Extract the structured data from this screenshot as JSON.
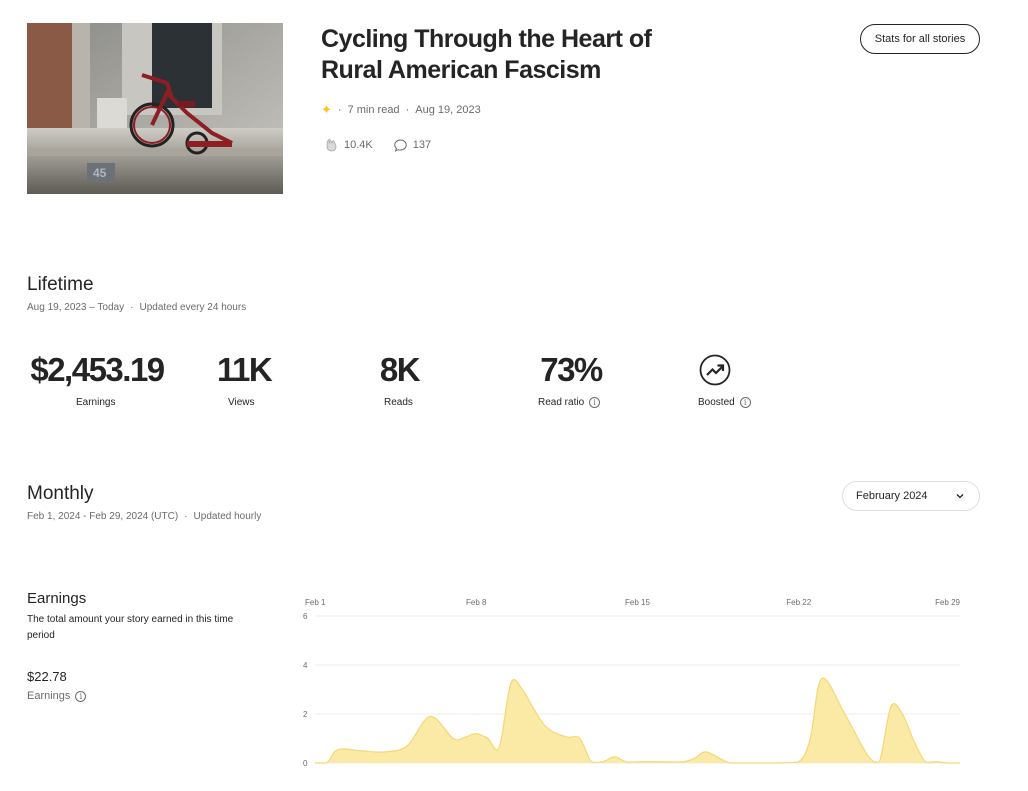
{
  "story": {
    "title": "Cycling Through the Heart of Rural American Fascism",
    "read_time": "7 min read",
    "date": "Aug 19, 2023",
    "claps": "10.4K",
    "responses": "137",
    "thumbnail_number": "45"
  },
  "buttons": {
    "stats_all": "Stats for all stories"
  },
  "lifetime": {
    "title": "Lifetime",
    "range": "Aug 19, 2023 – Today",
    "update": "Updated every 24 hours",
    "stats": [
      {
        "value": "$2,453.19",
        "label": "Earnings"
      },
      {
        "value": "11K",
        "label": "Views"
      },
      {
        "value": "8K",
        "label": "Reads"
      },
      {
        "value": "73%",
        "label": "Read ratio"
      },
      {
        "label": "Boosted"
      }
    ]
  },
  "monthly": {
    "title": "Monthly",
    "range": "Feb 1, 2024 - Feb 29, 2024 (UTC)",
    "update": "Updated hourly",
    "selected_month": "February 2024"
  },
  "earnings": {
    "title": "Earnings",
    "description": "The total amount your story earned in this time period",
    "value": "$22.78",
    "label": "Earnings"
  },
  "chart_data": {
    "type": "area",
    "x_tick_labels": [
      "Feb 1",
      "Feb 8",
      "Feb 15",
      "Feb 22",
      "Feb 29"
    ],
    "x_tick_days": [
      1,
      8,
      15,
      22,
      29
    ],
    "y_ticks": [
      0,
      2,
      4,
      6
    ],
    "ylim": [
      0,
      6
    ],
    "xlim": [
      1,
      29
    ],
    "grid": true,
    "fill_color": "#fbe9a6",
    "stroke_color": "#f5d774",
    "x": [
      1,
      1.5,
      2,
      3,
      4,
      5,
      6,
      7,
      7.5,
      8,
      8.5,
      9,
      9.5,
      10,
      10.5,
      11,
      11.5,
      12,
      12.5,
      13,
      13.5,
      14,
      14.5,
      15,
      15.5,
      16,
      17,
      17.5,
      18,
      19,
      20,
      21,
      22,
      22.5,
      23,
      24,
      25,
      25.5,
      26,
      26.5,
      27,
      27.5,
      28,
      28.5,
      29
    ],
    "y": [
      0,
      0,
      0.55,
      0.5,
      0.45,
      0.7,
      1.9,
      1.0,
      1.05,
      1.2,
      1.0,
      0.65,
      3.25,
      3.0,
      2.2,
      1.5,
      1.2,
      1.05,
      1.0,
      0.05,
      0.05,
      0.25,
      0.05,
      0.05,
      0.05,
      0.05,
      0.05,
      0.2,
      0.45,
      0.0,
      0.0,
      0.0,
      0.05,
      1.0,
      3.45,
      2.0,
      0.3,
      0.05,
      2.3,
      2.0,
      0.9,
      0.05,
      0.05,
      0.0,
      0.0
    ]
  }
}
